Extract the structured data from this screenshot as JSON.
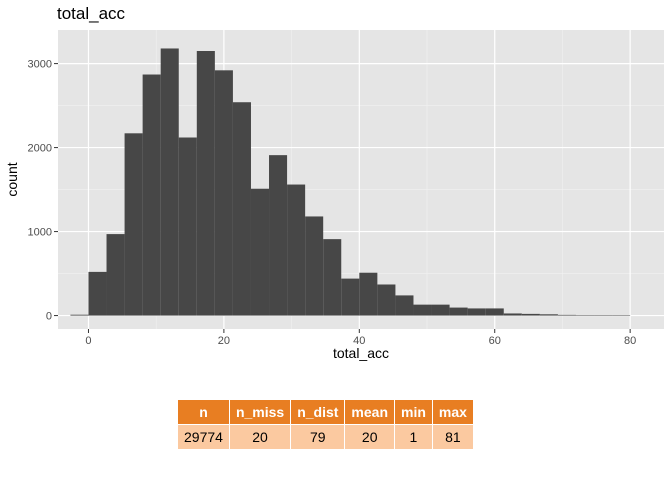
{
  "chart_data": {
    "type": "bar",
    "title": "total_acc",
    "xlabel": "total_acc",
    "ylabel": "count",
    "xlim": [
      -4.5,
      85
    ],
    "ylim": [
      -160,
      3400
    ],
    "x_ticks": [
      0,
      20,
      40,
      60,
      80
    ],
    "y_ticks": [
      0,
      1000,
      2000,
      3000
    ],
    "grid": true,
    "bin_width": 2.667,
    "bins": [
      {
        "x": -1.333,
        "count": 10
      },
      {
        "x": 1.333,
        "count": 520
      },
      {
        "x": 4.0,
        "count": 970
      },
      {
        "x": 6.667,
        "count": 2170
      },
      {
        "x": 9.333,
        "count": 2870
      },
      {
        "x": 12.0,
        "count": 3180
      },
      {
        "x": 14.667,
        "count": 2120
      },
      {
        "x": 17.333,
        "count": 3150
      },
      {
        "x": 20.0,
        "count": 2920
      },
      {
        "x": 22.667,
        "count": 2540
      },
      {
        "x": 25.333,
        "count": 1510
      },
      {
        "x": 28.0,
        "count": 1910
      },
      {
        "x": 30.667,
        "count": 1560
      },
      {
        "x": 33.333,
        "count": 1180
      },
      {
        "x": 36.0,
        "count": 910
      },
      {
        "x": 38.667,
        "count": 440
      },
      {
        "x": 41.333,
        "count": 510
      },
      {
        "x": 44.0,
        "count": 370
      },
      {
        "x": 46.667,
        "count": 240
      },
      {
        "x": 49.333,
        "count": 130
      },
      {
        "x": 52.0,
        "count": 130
      },
      {
        "x": 54.667,
        "count": 95
      },
      {
        "x": 57.333,
        "count": 85
      },
      {
        "x": 60.0,
        "count": 85
      },
      {
        "x": 62.667,
        "count": 25
      },
      {
        "x": 65.333,
        "count": 20
      },
      {
        "x": 68.0,
        "count": 15
      },
      {
        "x": 70.667,
        "count": 8
      },
      {
        "x": 73.333,
        "count": 5
      },
      {
        "x": 76.0,
        "count": 5
      },
      {
        "x": 78.667,
        "count": 3
      }
    ],
    "colors": {
      "panel": "#e5e5e5",
      "grid_major": "#ffffff",
      "grid_minor": "#f2f2f2",
      "bar": "#474747",
      "tick_text": "#4d4d4d",
      "axis_title": "#000000"
    }
  },
  "table": {
    "headers": [
      "n",
      "n_miss",
      "n_dist",
      "mean",
      "min",
      "max"
    ],
    "row": [
      "29774",
      "20",
      "79",
      "20",
      "1",
      "81"
    ],
    "header_color": "#e87e22",
    "cell_color": "#fbc9a0"
  }
}
